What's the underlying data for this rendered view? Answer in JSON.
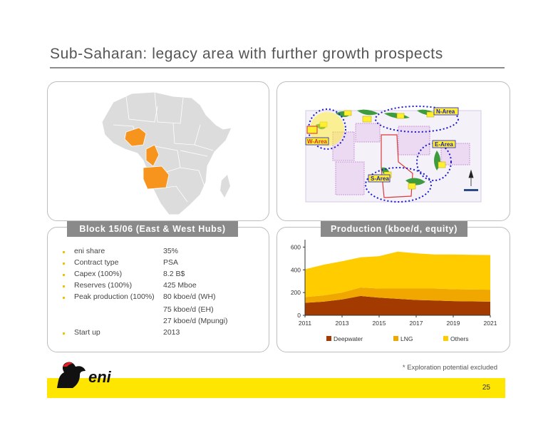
{
  "title": "Sub-Saharan: legacy area with further growth prospects",
  "block": {
    "heading": "Block 15/06 (East & West Hubs)",
    "items": [
      {
        "label": "eni share",
        "value": "35%",
        "bullet": true
      },
      {
        "label": "Contract type",
        "value": "PSA",
        "bullet": true
      },
      {
        "label": "Capex (100%)",
        "value": "8.2 B$",
        "bullet": true
      },
      {
        "label": "Reserves (100%)",
        "value": "425 Mboe",
        "bullet": true
      },
      {
        "label": "Peak production (100%)",
        "value": "80 kboe/d (WH)",
        "bullet": true
      },
      {
        "label": "",
        "value": "75 kboe/d (EH)",
        "bullet": false
      },
      {
        "label": "",
        "value": "27 kboe/d (Mpungi)",
        "bullet": false
      },
      {
        "label": "Start up",
        "value": "2013",
        "bullet": true
      }
    ]
  },
  "block_map": {
    "area_labels": [
      "N-Area",
      "W-Area",
      "E-Area",
      "S-Area"
    ]
  },
  "chart_data": {
    "type": "area",
    "title": "Production (kboe/d, equity)",
    "x": [
      2011,
      2012,
      2013,
      2014,
      2015,
      2016,
      2017,
      2018,
      2019,
      2020,
      2021
    ],
    "series": [
      {
        "name": "Deepwater",
        "color": "#a33a00",
        "values": [
          110,
          120,
          140,
          170,
          155,
          145,
          135,
          130,
          125,
          122,
          120
        ]
      },
      {
        "name": "LNG",
        "color": "#f0a800",
        "values": [
          50,
          55,
          60,
          75,
          80,
          90,
          100,
          105,
          105,
          105,
          105
        ]
      },
      {
        "name": "Others",
        "color": "#ffcc00",
        "values": [
          245,
          270,
          275,
          265,
          285,
          325,
          310,
          300,
          305,
          305,
          305
        ]
      }
    ],
    "x_ticks": [
      "2011",
      "2013",
      "2015",
      "2017",
      "2019",
      "2021"
    ],
    "y_ticks": [
      0,
      200,
      400,
      600
    ],
    "ylim": [
      0,
      640
    ]
  },
  "footnote": "* Exploration potential excluded",
  "page_number": "25",
  "colors": {
    "accent_yellow": "#ffe600",
    "highlight_orange": "#f7941d"
  }
}
